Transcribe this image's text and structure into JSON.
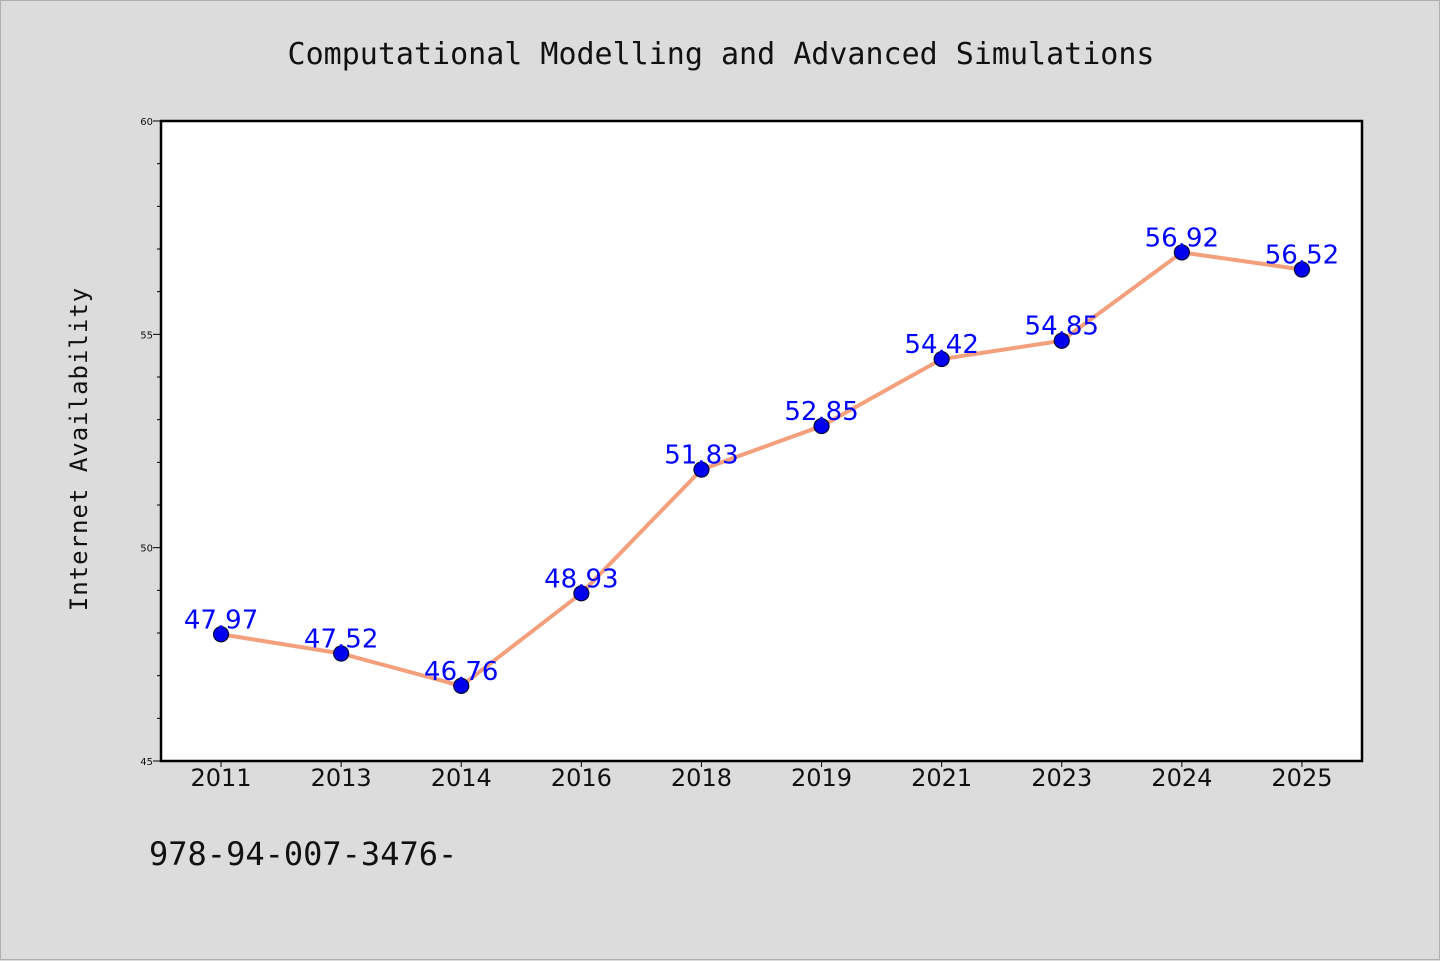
{
  "chart_data": {
    "type": "line",
    "title": "Computational Modelling and Advanced Simulations",
    "xlabel": "",
    "ylabel": "Internet Availability",
    "categories": [
      "2011",
      "2013",
      "2014",
      "2016",
      "2018",
      "2019",
      "2021",
      "2023",
      "2024",
      "2025"
    ],
    "values": [
      47.97,
      47.52,
      46.76,
      48.93,
      51.83,
      52.85,
      54.42,
      54.85,
      56.92,
      56.52
    ],
    "data_labels": [
      "47.97",
      "47.52",
      "46.76",
      "48.93",
      "51.83",
      "52.85",
      "54.42",
      "54.85",
      "56.92",
      "56.52"
    ],
    "ylim": [
      45,
      60
    ],
    "yticks": [
      "45",
      "50",
      "55",
      "60"
    ],
    "grid": false,
    "legend": "none",
    "colors": {
      "line": "#f4a07c",
      "marker": "#0000ee",
      "marker_edge": "#000033",
      "data_label": "#0000ff",
      "plot_background": "#ffffff",
      "page_background": "#dcdcdc"
    }
  },
  "footer": {
    "text": "978-94-007-3476-"
  }
}
